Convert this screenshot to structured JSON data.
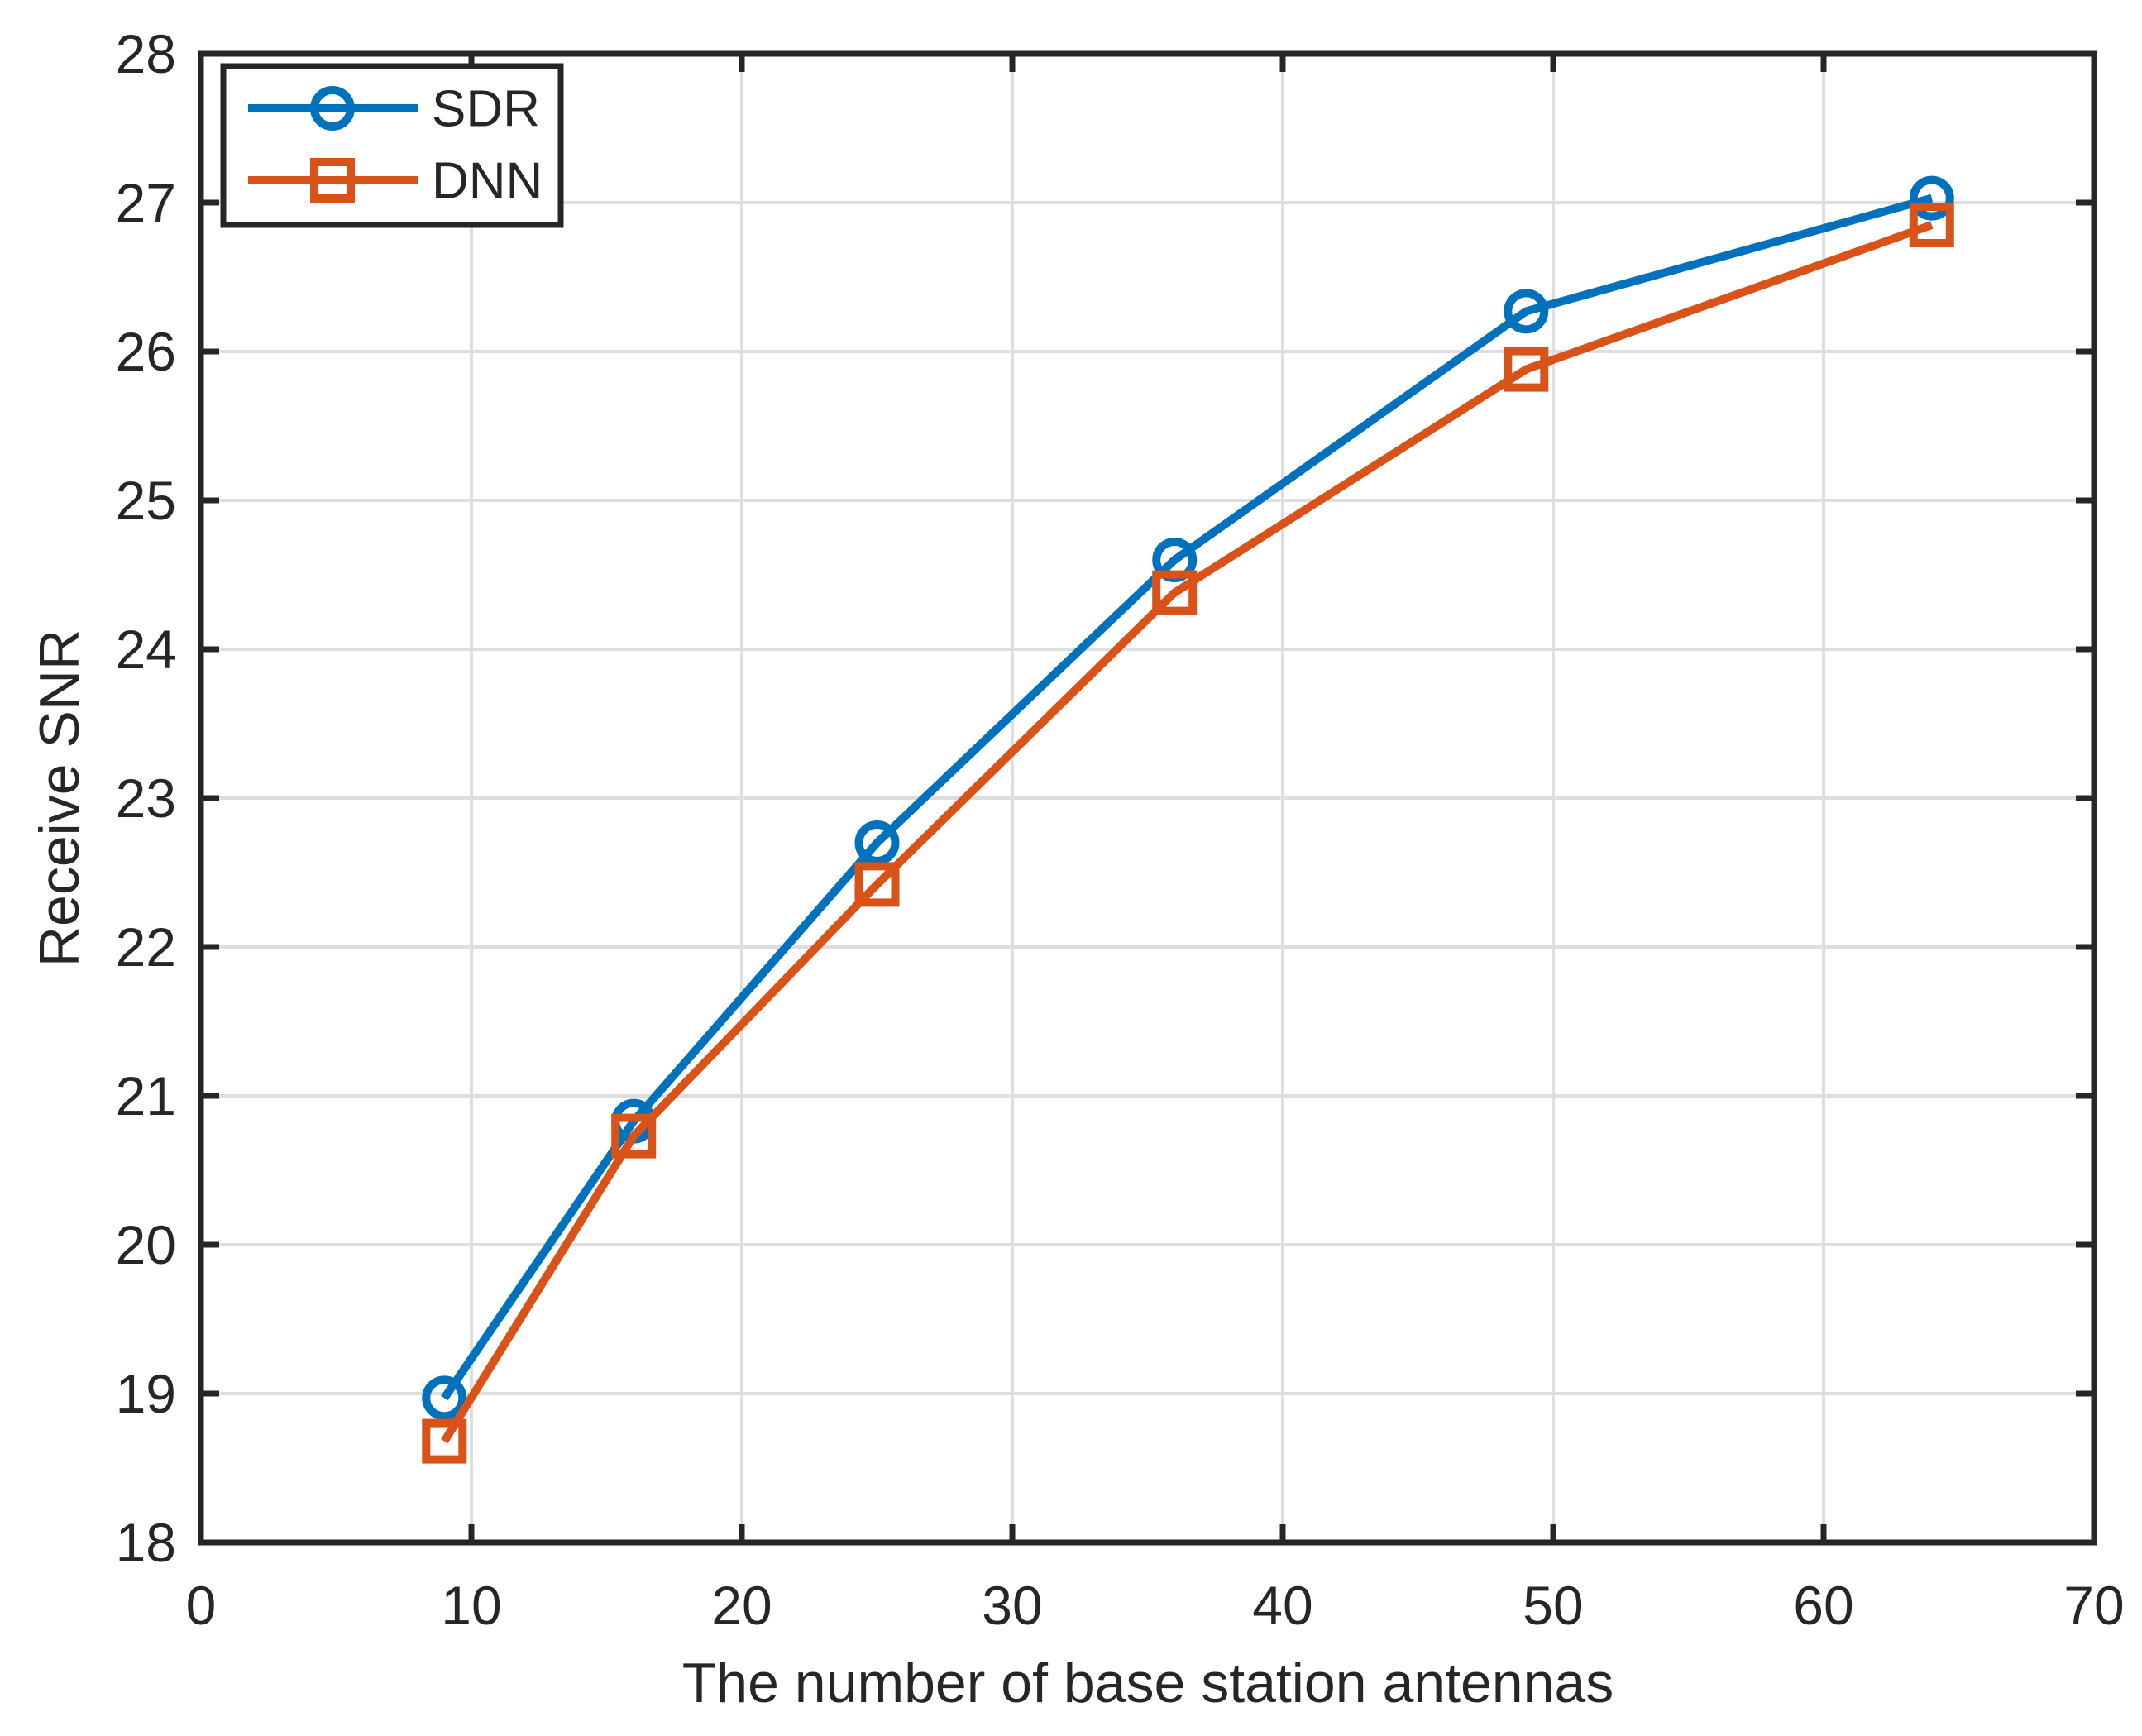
{
  "chart_data": {
    "type": "line",
    "title": "",
    "xlabel": "The number of base station antennas",
    "ylabel": "Receive SNR",
    "x": [
      9,
      16,
      25,
      36,
      49,
      64
    ],
    "series": [
      {
        "name": "SDR",
        "color": "#0072BD",
        "marker": "circle",
        "values": [
          18.97,
          20.83,
          22.7,
          24.6,
          26.27,
          27.03
        ]
      },
      {
        "name": "DNN",
        "color": "#D95319",
        "marker": "square",
        "values": [
          18.68,
          20.73,
          22.42,
          24.38,
          25.88,
          26.85
        ]
      }
    ],
    "xlim": [
      0,
      70
    ],
    "ylim": [
      18,
      28
    ],
    "xticks": [
      0,
      10,
      20,
      30,
      40,
      50,
      60,
      70
    ],
    "yticks": [
      18,
      19,
      20,
      21,
      22,
      23,
      24,
      25,
      26,
      27,
      28
    ],
    "grid": true,
    "legend_position": "top-left",
    "colors": {
      "axis": "#262626",
      "grid": "#DEDEDE",
      "background": "#FFFFFF"
    },
    "line_width": 10,
    "marker_size": 22
  }
}
